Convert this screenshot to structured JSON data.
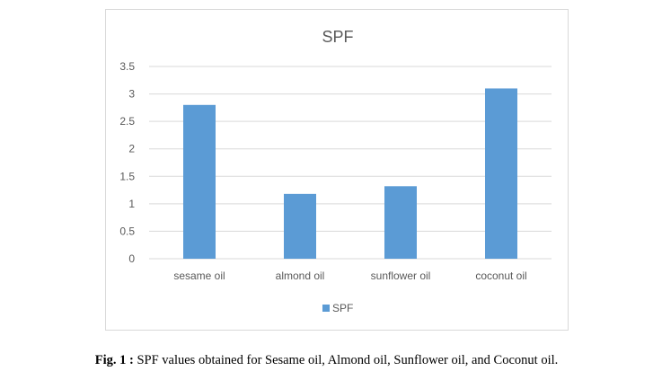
{
  "chart_data": {
    "type": "bar",
    "title": "SPF",
    "categories": [
      "sesame oil",
      "almond oil",
      "sunflower oil",
      "coconut oil"
    ],
    "series": [
      {
        "name": "SPF",
        "values": [
          2.8,
          1.18,
          1.32,
          3.1
        ]
      }
    ],
    "xlabel": "",
    "ylabel": "",
    "ylim": [
      0,
      3.5
    ],
    "yticks": [
      "0",
      "0.5",
      "1",
      "1.5",
      "2",
      "2.5",
      "3",
      "3.5"
    ],
    "grid": true,
    "legend_position": "bottom",
    "bar_color": "#5b9bd5",
    "grid_color": "#d9d9d9"
  },
  "caption": {
    "prefix": "Fig. 1 :",
    "text": " SPF values obtained for Sesame oil, Almond oil, Sunflower oil, and Coconut oil."
  }
}
